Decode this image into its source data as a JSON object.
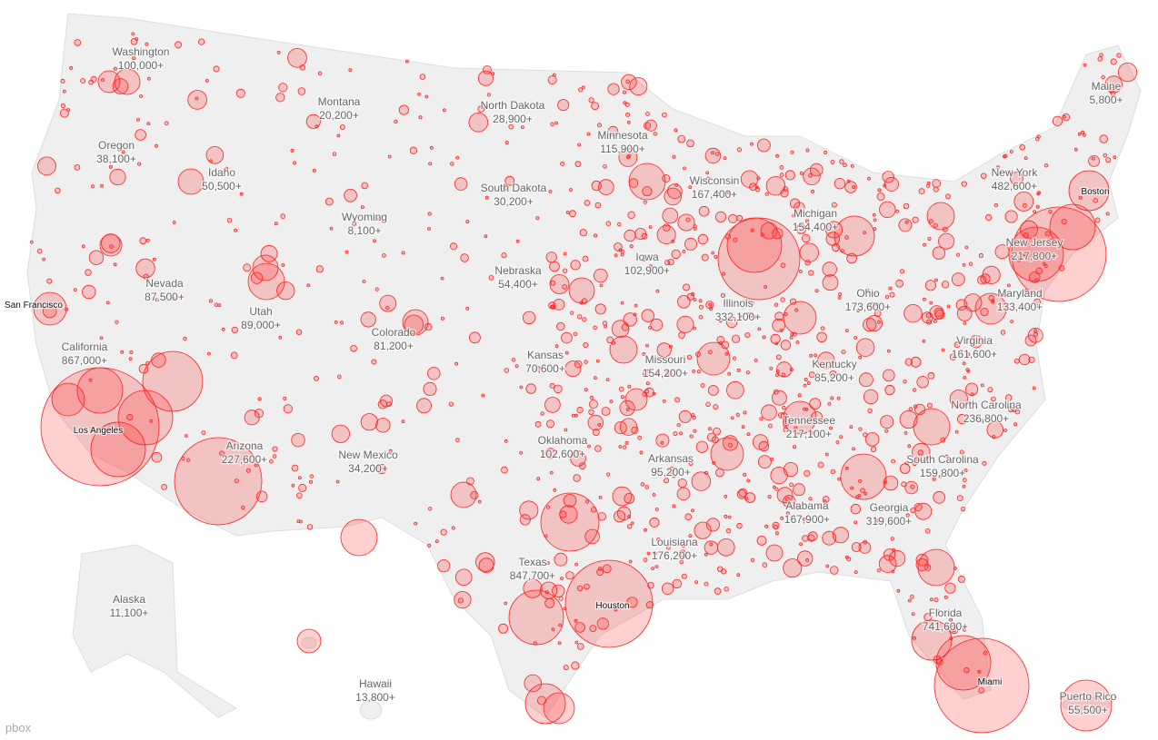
{
  "states": [
    {
      "name": "Washington",
      "count": "100,000+"
    },
    {
      "name": "Montana",
      "count": "20,200+"
    },
    {
      "name": "North Dakota",
      "count": "28,900+"
    },
    {
      "name": "Minnesota",
      "count": "115,900+"
    },
    {
      "name": "Maine",
      "count": "5,800+"
    },
    {
      "name": "Oregon",
      "count": "38,100+"
    },
    {
      "name": "Idaho",
      "count": "50,500+"
    },
    {
      "name": "Wisconsin",
      "count": "167,400+"
    },
    {
      "name": "South Dakota",
      "count": "30,200+"
    },
    {
      "name": "New York",
      "count": "482,600+"
    },
    {
      "name": "Wyoming",
      "count": "8,100+"
    },
    {
      "name": "Michigan",
      "count": "154,400+"
    },
    {
      "name": "New Jersey",
      "count": "217,800+"
    },
    {
      "name": "Iowa",
      "count": "102,900+"
    },
    {
      "name": "Nebraska",
      "count": "54,400+"
    },
    {
      "name": "Nevada",
      "count": "87,500+"
    },
    {
      "name": "Utah",
      "count": "89,000+"
    },
    {
      "name": "Illinois",
      "count": "332,100+"
    },
    {
      "name": "Ohio",
      "count": "173,600+"
    },
    {
      "name": "Maryland",
      "count": "133,400+"
    },
    {
      "name": "Colorado",
      "count": "81,200+"
    },
    {
      "name": "California",
      "count": "867,000+"
    },
    {
      "name": "Virginia",
      "count": "161,600+"
    },
    {
      "name": "Kansas",
      "count": "70,600+"
    },
    {
      "name": "Missouri",
      "count": "154,200+"
    },
    {
      "name": "Kentucky",
      "count": "85,200+"
    },
    {
      "name": "North Carolina",
      "count": "236,800+"
    },
    {
      "name": "Tennessee",
      "count": "217,100+"
    },
    {
      "name": "Arizona",
      "count": "227,600+"
    },
    {
      "name": "Oklahoma",
      "count": "102,600+"
    },
    {
      "name": "New Mexico",
      "count": "34,200+"
    },
    {
      "name": "Arkansas",
      "count": "95,200+"
    },
    {
      "name": "South Carolina",
      "count": "159,800+"
    },
    {
      "name": "Alabama",
      "count": "167,900+"
    },
    {
      "name": "Georgia",
      "count": "319,600+"
    },
    {
      "name": "Louisiana",
      "count": "176,200+"
    },
    {
      "name": "Texas",
      "count": "847,700+"
    },
    {
      "name": "Alaska",
      "count": "11,100+"
    },
    {
      "name": "Florida",
      "count": "741,600+"
    },
    {
      "name": "Hawaii",
      "count": "13,800+"
    },
    {
      "name": "Puerto Rico",
      "count": "55,500+"
    }
  ],
  "cities": [
    "San Francisco",
    "Los Angeles",
    "Houston",
    "Miami",
    "Boston"
  ],
  "watermark": "pbox"
}
